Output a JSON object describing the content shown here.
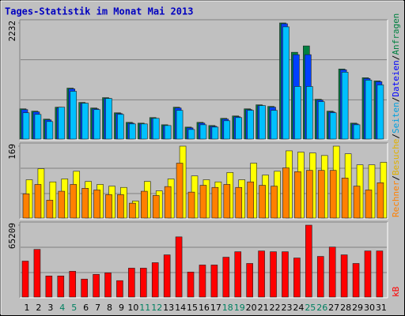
{
  "title": "Tages-Statistik im Monat Mai 2013",
  "legend_separator": "/",
  "chart_data": [
    {
      "type": "bar",
      "ylim": [
        0,
        2232
      ],
      "yticks": [
        2232
      ],
      "series": [
        {
          "name": "Anfragen",
          "color": "#008040",
          "legend_color": "#008040",
          "values": [
            581,
            536,
            383,
            612,
            979,
            704,
            597,
            796,
            505,
            321,
            306,
            413,
            275,
            612,
            230,
            321,
            260,
            398,
            444,
            581,
            658,
            627,
            2232,
            1668,
            1790,
            765,
            536,
            1346,
            306,
            1178,
            1117
          ]
        },
        {
          "name": "Dateien",
          "color": "#0040ff",
          "legend_color": "#0000ff",
          "values": [
            566,
            521,
            368,
            597,
            964,
            689,
            582,
            781,
            490,
            306,
            291,
            398,
            260,
            597,
            215,
            306,
            245,
            383,
            429,
            566,
            643,
            612,
            2217,
            1622,
            1622,
            750,
            521,
            1331,
            291,
            1163,
            1102
          ]
        },
        {
          "name": "Seiten",
          "color": "#00c0ff",
          "legend_color": "#00a0e0",
          "values": [
            505,
            474,
            337,
            612,
            918,
            689,
            566,
            780,
            474,
            291,
            291,
            398,
            260,
            551,
            184,
            275,
            230,
            352,
            413,
            551,
            643,
            551,
            2157,
            1010,
            1010,
            719,
            505,
            1285,
            275,
            1132,
            1040
          ]
        }
      ]
    },
    {
      "type": "bar",
      "ylim": [
        0,
        169
      ],
      "yticks": [
        169
      ],
      "series": [
        {
          "name": "Besuche",
          "color": "#ffff00",
          "legend_color": "#e0b000",
          "values": [
            90,
            116,
            85,
            92,
            110,
            86,
            79,
            75,
            72,
            40,
            86,
            64,
            92,
            169,
            99,
            90,
            85,
            107,
            90,
            129,
            101,
            110,
            158,
            155,
            153,
            147,
            169,
            151,
            125,
            125,
            131
          ]
        },
        {
          "name": "Rechner",
          "color": "#ff8000",
          "legend_color": "#ff8000",
          "values": [
            57,
            79,
            42,
            63,
            79,
            70,
            66,
            55,
            55,
            35,
            63,
            53,
            74,
            129,
            61,
            77,
            72,
            79,
            72,
            85,
            77,
            75,
            118,
            109,
            112,
            112,
            112,
            94,
            75,
            66,
            83
          ]
        }
      ]
    },
    {
      "type": "bar",
      "ylim": [
        0,
        65209
      ],
      "yticks": [
        65209
      ],
      "categories": [
        "1",
        "2",
        "3",
        "4",
        "5",
        "6",
        "7",
        "8",
        "9",
        "10",
        "11",
        "12",
        "13",
        "14",
        "15",
        "16",
        "17",
        "18",
        "19",
        "20",
        "21",
        "22",
        "23",
        "24",
        "25",
        "26",
        "27",
        "28",
        "29",
        "30",
        "31"
      ],
      "category_colors": [
        "#000",
        "#000",
        "#000",
        "#008060",
        "#008060",
        "#000",
        "#000",
        "#000",
        "#000",
        "#000",
        "#008060",
        "#008060",
        "#000",
        "#000",
        "#000",
        "#000",
        "#000",
        "#008060",
        "#008060",
        "#000",
        "#000",
        "#000",
        "#000",
        "#000",
        "#008060",
        "#008060",
        "#000",
        "#000",
        "#000",
        "#000",
        "#000"
      ],
      "series": [
        {
          "name": "kB",
          "color": "#ff0000",
          "legend_color": "#ff0000",
          "values": [
            32605,
            43237,
            19138,
            19138,
            23390,
            16302,
            20555,
            21973,
            14885,
            26226,
            26226,
            31187,
            38275,
            54578,
            22682,
            29061,
            29061,
            36149,
            41110,
            30478,
            41819,
            41110,
            41110,
            35440,
            65209,
            36858,
            45363,
            38275,
            30478,
            41819,
            41819
          ]
        }
      ]
    }
  ]
}
